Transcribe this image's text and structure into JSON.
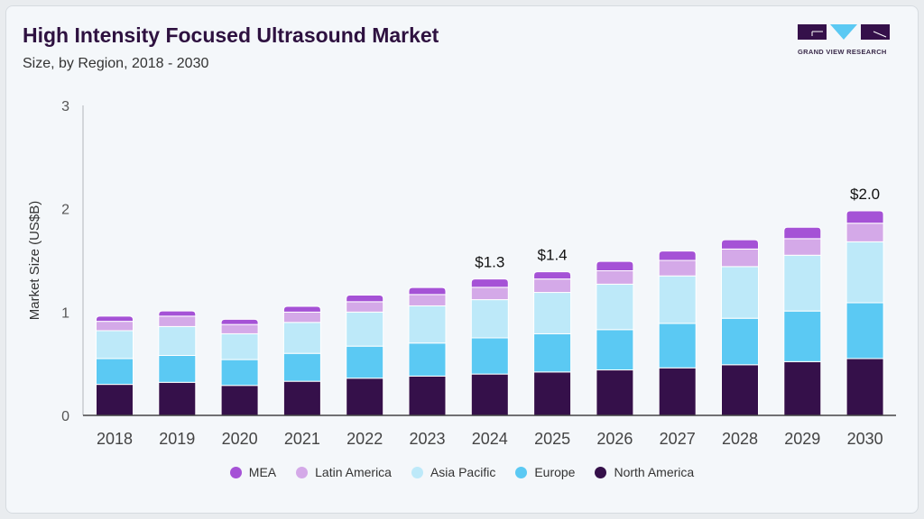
{
  "header": {
    "title": "High Intensity Focused Ultrasound Market",
    "subtitle": "Size, by Region, 2018 - 2030"
  },
  "logo": {
    "text": "GRAND VIEW RESEARCH"
  },
  "chart_data": {
    "type": "bar",
    "stacked": true,
    "ylabel": "Market Size (US$B)",
    "xlabel": "",
    "ylim": [
      0,
      3
    ],
    "yticks": [
      "0",
      "1",
      "2",
      "3"
    ],
    "grid": false,
    "legend_position": "bottom",
    "categories": [
      "2018",
      "2019",
      "2020",
      "2021",
      "2022",
      "2023",
      "2024",
      "2025",
      "2026",
      "2027",
      "2028",
      "2029",
      "2030"
    ],
    "series": [
      {
        "name": "North America",
        "color": "#35104a",
        "values": [
          0.3,
          0.32,
          0.29,
          0.33,
          0.36,
          0.38,
          0.4,
          0.42,
          0.44,
          0.46,
          0.49,
          0.52,
          0.55
        ]
      },
      {
        "name": "Europe",
        "color": "#5bc9f3",
        "values": [
          0.25,
          0.26,
          0.25,
          0.27,
          0.31,
          0.32,
          0.35,
          0.37,
          0.39,
          0.43,
          0.45,
          0.49,
          0.54
        ]
      },
      {
        "name": "Asia Pacific",
        "color": "#bde9f9",
        "values": [
          0.27,
          0.28,
          0.25,
          0.3,
          0.33,
          0.36,
          0.37,
          0.4,
          0.44,
          0.46,
          0.5,
          0.54,
          0.59
        ]
      },
      {
        "name": "Latin America",
        "color": "#d4a9e8",
        "values": [
          0.09,
          0.1,
          0.09,
          0.1,
          0.1,
          0.11,
          0.12,
          0.13,
          0.13,
          0.15,
          0.17,
          0.16,
          0.18
        ]
      },
      {
        "name": "MEA",
        "color": "#a552d6",
        "values": [
          0.05,
          0.05,
          0.05,
          0.055,
          0.064,
          0.067,
          0.08,
          0.07,
          0.09,
          0.09,
          0.09,
          0.11,
          0.12
        ]
      }
    ],
    "data_labels": [
      {
        "category": "2024",
        "text": "$1.3"
      },
      {
        "category": "2025",
        "text": "$1.4"
      },
      {
        "category": "2030",
        "text": "$2.0"
      }
    ],
    "legend_order": [
      "MEA",
      "Latin America",
      "Asia Pacific",
      "Europe",
      "North America"
    ]
  }
}
